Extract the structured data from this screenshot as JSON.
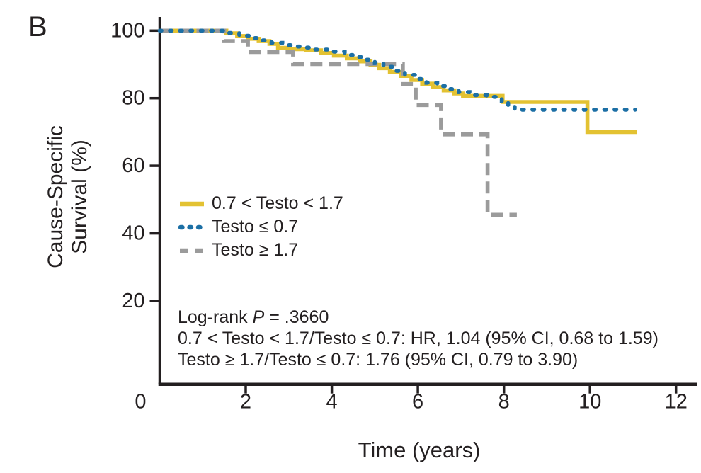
{
  "panel_label": "B",
  "chart_data": {
    "type": "line",
    "subtype": "kaplan-meier-step",
    "title": "",
    "xlabel": "Time (years)",
    "ylabel_line1": "Cause-Specific",
    "ylabel_line2": "Survival (%)",
    "x_axis": {
      "ticks": [
        0,
        2,
        4,
        6,
        8,
        10,
        12
      ],
      "range": [
        0,
        12.5
      ],
      "grid": false
    },
    "y_axis": {
      "ticks": [
        20,
        40,
        60,
        80,
        100
      ],
      "range": [
        0,
        100
      ],
      "grid": false
    },
    "axis_color": "#231F20",
    "legend_position": "inside-left-middle",
    "series": [
      {
        "name": "0.7 < Testo < 1.7",
        "color": "#E3C232",
        "style": "solid",
        "steps": [
          [
            0,
            100
          ],
          [
            1.55,
            99.2
          ],
          [
            1.8,
            98.4
          ],
          [
            2.05,
            97.6
          ],
          [
            2.3,
            96.9
          ],
          [
            2.55,
            96.1
          ],
          [
            2.75,
            94.9
          ],
          [
            3.0,
            94.5
          ],
          [
            3.4,
            94.2
          ],
          [
            3.75,
            93.4
          ],
          [
            4.05,
            92.6
          ],
          [
            4.35,
            91.8
          ],
          [
            4.65,
            90.9
          ],
          [
            4.9,
            89.9
          ],
          [
            5.1,
            88.9
          ],
          [
            5.35,
            87.8
          ],
          [
            5.6,
            86.6
          ],
          [
            5.85,
            85.4
          ],
          [
            6.1,
            84.3
          ],
          [
            6.35,
            83.3
          ],
          [
            6.6,
            82.3
          ],
          [
            6.85,
            81.4
          ],
          [
            7.05,
            80.7
          ],
          [
            7.97,
            78.9
          ],
          [
            9.94,
            70.0
          ],
          [
            11.09,
            70.0
          ]
        ]
      },
      {
        "name": "Testo ≤ 0.7",
        "color": "#1C6FA5",
        "style": "dotted",
        "steps": [
          [
            0,
            100
          ],
          [
            1.6,
            99.3
          ],
          [
            1.85,
            98.5
          ],
          [
            2.1,
            97.8
          ],
          [
            2.35,
            97.1
          ],
          [
            2.6,
            96.4
          ],
          [
            2.85,
            95.7
          ],
          [
            3.05,
            95.3
          ],
          [
            3.3,
            95.0
          ],
          [
            3.6,
            94.4
          ],
          [
            3.9,
            93.8
          ],
          [
            4.3,
            92.8
          ],
          [
            4.6,
            92.2
          ],
          [
            4.8,
            91.4
          ],
          [
            5.0,
            90.4
          ],
          [
            5.2,
            89.3
          ],
          [
            5.45,
            88.1
          ],
          [
            5.7,
            86.9
          ],
          [
            5.95,
            85.7
          ],
          [
            6.2,
            84.6
          ],
          [
            6.45,
            83.6
          ],
          [
            6.7,
            82.7
          ],
          [
            6.95,
            81.8
          ],
          [
            7.2,
            80.9
          ],
          [
            7.6,
            80.4
          ],
          [
            7.95,
            79.2
          ],
          [
            8.1,
            78.0
          ],
          [
            8.25,
            76.6
          ],
          [
            11.05,
            76.6
          ]
        ]
      },
      {
        "name": "Testo ≥ 1.7",
        "color": "#9B9B9B",
        "style": "dashed",
        "steps": [
          [
            0,
            100
          ],
          [
            1.5,
            96.9
          ],
          [
            2.05,
            93.7
          ],
          [
            3.1,
            90.1
          ],
          [
            5.65,
            84.2
          ],
          [
            5.95,
            78.0
          ],
          [
            6.54,
            69.3
          ],
          [
            7.62,
            45.5
          ],
          [
            8.3,
            45.5
          ]
        ]
      }
    ],
    "stats": {
      "line1_prefix": "Log-rank ",
      "line1_italic": "P",
      "line1_suffix": " = .3660",
      "line2": "0.7 < Testo < 1.7/Testo ≤ 0.7: HR, 1.04 (95% CI, 0.68 to 1.59)",
      "line3": "Testo ≥ 1.7/Testo ≤ 0.7: 1.76 (95% CI, 0.79 to 3.90)"
    }
  }
}
